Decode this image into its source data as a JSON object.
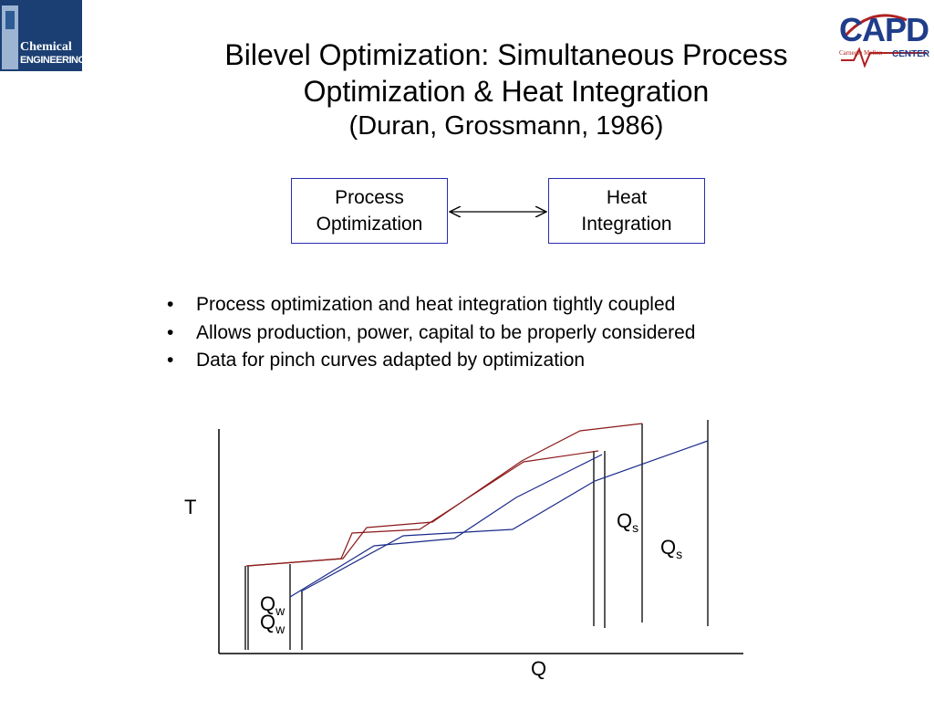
{
  "logos": {
    "left": {
      "line1": "Chemical",
      "line2": "ENGINEERING",
      "colors": {
        "bg": "#1b3f73"
      }
    },
    "right": {
      "main": "CAPD",
      "sub": "CENTER",
      "small": "Carnegie Mellon",
      "colors": {
        "primary": "#1f3d8a",
        "accent": "#b02020"
      }
    }
  },
  "title": {
    "line1": "Bilevel Optimization: Simultaneous Process",
    "line2": "Optimization & Heat Integration",
    "line3": "(Duran, Grossmann, 1986)"
  },
  "flow": {
    "process_box": "Process\nOptimization",
    "heat_box": "Heat\nIntegration",
    "arrow": "bidirectional",
    "box_border_color": "#2b2bb0"
  },
  "bullets": [
    "Process optimization and heat integration tightly coupled",
    "Allows production, power, capital to be properly considered",
    "Data for pinch curves adapted by optimization"
  ],
  "diagram": {
    "axis_y_label": "T",
    "axis_x_label": "Q",
    "hot_curve_color": "#8b1a1a",
    "cold_curve_color": "#1a2a8b",
    "labels": [
      {
        "name": "Qs-label-1",
        "base": "Q",
        "sub": "s"
      },
      {
        "name": "Qs-label-2",
        "base": "Q",
        "sub": "s"
      },
      {
        "name": "Qw-label-1",
        "base": "Q",
        "sub": "w"
      },
      {
        "name": "Qw-label-2",
        "base": "Q",
        "sub": "w"
      }
    ]
  }
}
